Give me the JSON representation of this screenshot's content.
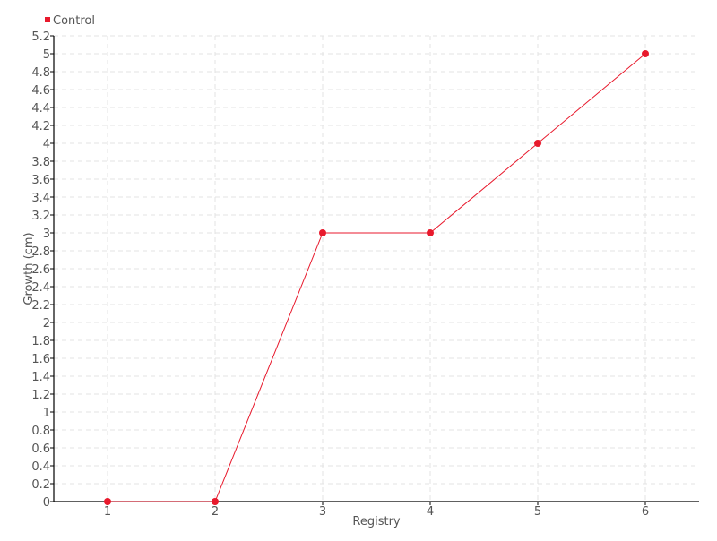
{
  "chart_data": {
    "type": "line",
    "title": "",
    "xlabel": "Registry",
    "ylabel": "Growth (cm)",
    "categories": [
      "1",
      "2",
      "3",
      "4",
      "5",
      "6"
    ],
    "series": [
      {
        "name": "Control",
        "color": "#e8192c",
        "values": [
          0,
          0,
          3,
          3,
          4,
          5
        ]
      }
    ],
    "ylim": [
      0,
      5.2
    ],
    "ytick_step": 0.2,
    "grid": true,
    "legend_position": "top-left"
  }
}
